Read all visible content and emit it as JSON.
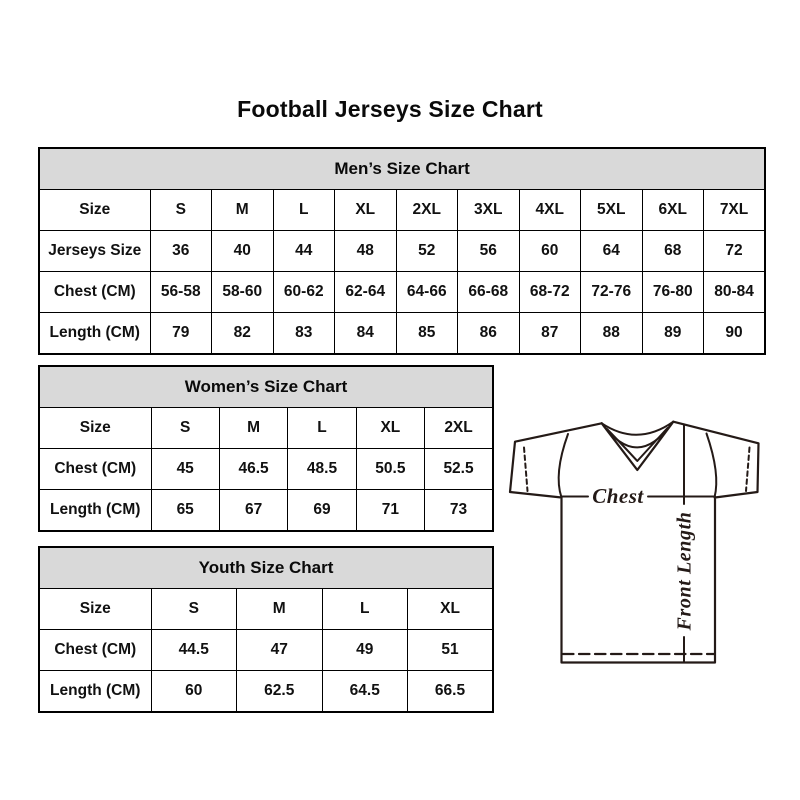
{
  "page_title": "Football Jerseys Size Chart",
  "colors": {
    "background": "#ffffff",
    "table_border": "#000000",
    "header_band_bg": "#d9d9d9",
    "text": "#111111",
    "jersey_line": "#241a17"
  },
  "tables": [
    {
      "id": "men",
      "title": "Men’s Size Chart",
      "rows": [
        {
          "label": "Size",
          "values": [
            "S",
            "M",
            "L",
            "XL",
            "2XL",
            "3XL",
            "4XL",
            "5XL",
            "6XL",
            "7XL"
          ]
        },
        {
          "label": "Jerseys Size",
          "values": [
            "36",
            "40",
            "44",
            "48",
            "52",
            "56",
            "60",
            "64",
            "68",
            "72"
          ]
        },
        {
          "label": "Chest (CM)",
          "values": [
            "56-58",
            "58-60",
            "60-62",
            "62-64",
            "64-66",
            "66-68",
            "68-72",
            "72-76",
            "76-80",
            "80-84"
          ]
        },
        {
          "label": "Length (CM)",
          "values": [
            "79",
            "82",
            "83",
            "84",
            "85",
            "86",
            "87",
            "88",
            "89",
            "90"
          ]
        }
      ]
    },
    {
      "id": "women",
      "title": "Women’s Size Chart",
      "rows": [
        {
          "label": "Size",
          "values": [
            "S",
            "M",
            "L",
            "XL",
            "2XL"
          ]
        },
        {
          "label": "Chest (CM)",
          "values": [
            "45",
            "46.5",
            "48.5",
            "50.5",
            "52.5"
          ]
        },
        {
          "label": "Length (CM)",
          "values": [
            "65",
            "67",
            "69",
            "71",
            "73"
          ]
        }
      ]
    },
    {
      "id": "youth",
      "title": "Youth Size Chart",
      "rows": [
        {
          "label": "Size",
          "values": [
            "S",
            "M",
            "L",
            "XL"
          ]
        },
        {
          "label": "Chest (CM)",
          "values": [
            "44.5",
            "47",
            "49",
            "51"
          ]
        },
        {
          "label": "Length (CM)",
          "values": [
            "60",
            "62.5",
            "64.5",
            "66.5"
          ]
        }
      ]
    }
  ],
  "diagram": {
    "chest_label": "Chest",
    "front_length_label": "Front Length"
  }
}
